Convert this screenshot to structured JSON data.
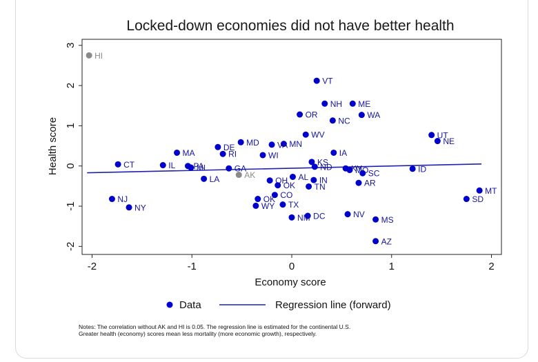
{
  "chart_data": {
    "type": "scatter",
    "title": "Locked-down economies did not have better health",
    "xlabel": "Economy score",
    "ylabel": "Health score",
    "xlim": [
      -2.1,
      2.1
    ],
    "ylim": [
      -2.2,
      3.15
    ],
    "xticks": [
      -2,
      -1,
      0,
      1,
      2
    ],
    "yticks": [
      -2,
      -1,
      0,
      1,
      2,
      3
    ],
    "point_color": "#0000cc",
    "outlier_color": "#8a8a8a",
    "line_color": "#1f1fb0",
    "regression_line": {
      "name": "Regression line (forward)",
      "x": [
        -2.05,
        1.9
      ],
      "y": [
        -0.17,
        0.05
      ]
    },
    "series": [
      {
        "name": "Data",
        "points": [
          {
            "label": "HI",
            "x": -2.03,
            "y": 2.75,
            "outlier": true
          },
          {
            "label": "AK",
            "x": -0.53,
            "y": -0.22,
            "outlier": true
          },
          {
            "label": "VT",
            "x": 0.25,
            "y": 2.12
          },
          {
            "label": "NH",
            "x": 0.33,
            "y": 1.55
          },
          {
            "label": "ME",
            "x": 0.61,
            "y": 1.55
          },
          {
            "label": "OR",
            "x": 0.08,
            "y": 1.28
          },
          {
            "label": "WA",
            "x": 0.7,
            "y": 1.27
          },
          {
            "label": "NC",
            "x": 0.41,
            "y": 1.13
          },
          {
            "label": "WV",
            "x": 0.14,
            "y": 0.78
          },
          {
            "label": "UT",
            "x": 1.4,
            "y": 0.77
          },
          {
            "label": "NE",
            "x": 1.46,
            "y": 0.62
          },
          {
            "label": "MD",
            "x": -0.51,
            "y": 0.59
          },
          {
            "label": "MN",
            "x": -0.08,
            "y": 0.55
          },
          {
            "label": "VA",
            "x": -0.2,
            "y": 0.53
          },
          {
            "label": "DE",
            "x": -0.74,
            "y": 0.47
          },
          {
            "label": "MA",
            "x": -1.15,
            "y": 0.33
          },
          {
            "label": "IA",
            "x": 0.42,
            "y": 0.33
          },
          {
            "label": "RI",
            "x": -0.69,
            "y": 0.3
          },
          {
            "label": "WI",
            "x": -0.29,
            "y": 0.27
          },
          {
            "label": "KS",
            "x": 0.2,
            "y": 0.1
          },
          {
            "label": "CT",
            "x": -1.74,
            "y": 0.04
          },
          {
            "label": "IL",
            "x": -1.29,
            "y": 0.02
          },
          {
            "label": "PA",
            "x": -1.04,
            "y": 0.0
          },
          {
            "label": "ND",
            "x": 0.23,
            "y": -0.02
          },
          {
            "label": "MI",
            "x": -1.01,
            "y": -0.04
          },
          {
            "label": "GA",
            "x": -0.63,
            "y": -0.06
          },
          {
            "label": "KY",
            "x": 0.54,
            "y": -0.06
          },
          {
            "label": "ID",
            "x": 1.21,
            "y": -0.07
          },
          {
            "label": "MO",
            "x": 0.58,
            "y": -0.1
          },
          {
            "label": "SC",
            "x": 0.71,
            "y": -0.18
          },
          {
            "label": "LA",
            "x": -0.88,
            "y": -0.32
          },
          {
            "label": "AL",
            "x": 0.01,
            "y": -0.27
          },
          {
            "label": "OH",
            "x": -0.22,
            "y": -0.36
          },
          {
            "label": "IN",
            "x": 0.22,
            "y": -0.35
          },
          {
            "label": "AR",
            "x": 0.67,
            "y": -0.42
          },
          {
            "label": "OK",
            "x": -0.14,
            "y": -0.48
          },
          {
            "label": "TN",
            "x": 0.17,
            "y": -0.51
          },
          {
            "label": "CO",
            "x": -0.17,
            "y": -0.72
          },
          {
            "label": "MT",
            "x": 1.88,
            "y": -0.61
          },
          {
            "label": "SD",
            "x": 1.75,
            "y": -0.82
          },
          {
            "label": "NJ",
            "x": -1.8,
            "y": -0.82
          },
          {
            "label": "OK",
            "x": -0.34,
            "y": -0.82
          },
          {
            "label": "TX",
            "x": -0.09,
            "y": -0.96
          },
          {
            "label": "WY",
            "x": -0.36,
            "y": -0.99
          },
          {
            "label": "NY",
            "x": -1.63,
            "y": -1.03
          },
          {
            "label": "NV",
            "x": 0.56,
            "y": -1.2
          },
          {
            "label": "DC",
            "x": 0.16,
            "y": -1.24
          },
          {
            "label": "NM",
            "x": 0.0,
            "y": -1.28
          },
          {
            "label": "MS",
            "x": 0.84,
            "y": -1.33
          },
          {
            "label": "AZ",
            "x": 0.84,
            "y": -1.87
          }
        ]
      }
    ],
    "legend": {
      "data_label": "Data",
      "line_label": "Regression line (forward)",
      "placement": "bottom"
    }
  },
  "notes": {
    "line1": "Notes: The correlation without AK and HI is 0.05.  The regression line is estimated for the continental U.S.",
    "line2": "Greater health (economy) scores mean less mortality (more economic growth), respectively."
  }
}
